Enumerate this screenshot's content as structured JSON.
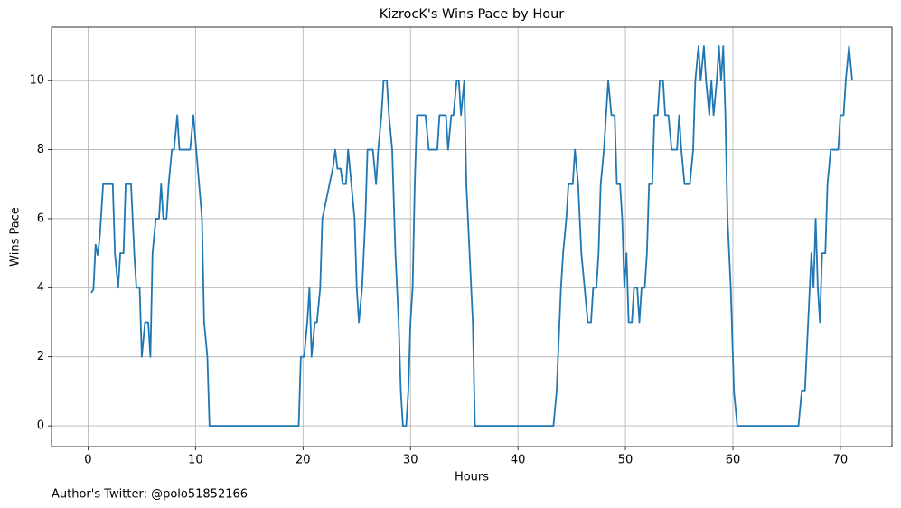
{
  "chart_data": {
    "type": "line",
    "title": "KizrocK's Wins Pace by Hour",
    "xlabel": "Hours",
    "ylabel": "Wins Pace",
    "footnote": "Author's Twitter: @polo51852166",
    "color": "#1f77b4",
    "grid": true,
    "xlim": [
      -3.4,
      74.8
    ],
    "ylim": [
      -0.6,
      11.55
    ],
    "xticks": [
      0,
      10,
      20,
      30,
      40,
      50,
      60,
      70
    ],
    "yticks": [
      0,
      2,
      4,
      6,
      8,
      10
    ],
    "x": [
      0.3,
      0.5,
      0.7,
      0.9,
      1.1,
      1.4,
      2.0,
      2.3,
      2.5,
      2.8,
      3.0,
      3.3,
      3.5,
      4.0,
      4.3,
      4.5,
      4.8,
      5.0,
      5.3,
      5.6,
      5.8,
      6.0,
      6.3,
      6.6,
      6.8,
      7.0,
      7.3,
      7.5,
      7.8,
      8.0,
      8.3,
      8.5,
      9.0,
      9.5,
      9.8,
      10.2,
      10.6,
      10.8,
      11.1,
      11.3,
      19.6,
      19.8,
      20.1,
      20.4,
      20.6,
      20.8,
      21.1,
      21.3,
      21.6,
      21.8,
      22.8,
      23.0,
      23.2,
      23.5,
      23.7,
      24.0,
      24.2,
      24.5,
      24.8,
      25.0,
      25.2,
      25.5,
      25.8,
      26.0,
      26.5,
      26.8,
      27.0,
      27.3,
      27.5,
      27.8,
      28.0,
      28.3,
      28.6,
      28.9,
      29.1,
      29.3,
      29.6,
      29.8,
      30.0,
      30.2,
      30.4,
      30.6,
      31.0,
      31.4,
      31.7,
      32.2,
      32.5,
      32.7,
      33.0,
      33.3,
      33.5,
      33.8,
      34.0,
      34.3,
      34.5,
      34.7,
      35.0,
      35.2,
      35.5,
      35.8,
      36.0,
      43.3,
      43.6,
      44.0,
      44.2,
      44.5,
      44.7,
      45.1,
      45.3,
      45.6,
      45.9,
      46.2,
      46.5,
      46.8,
      47.0,
      47.3,
      47.5,
      47.7,
      48.0,
      48.2,
      48.4,
      48.7,
      49.0,
      49.2,
      49.5,
      49.7,
      49.9,
      50.1,
      50.3,
      50.6,
      50.8,
      51.1,
      51.3,
      51.5,
      51.8,
      52.0,
      52.2,
      52.5,
      52.7,
      53.0,
      53.2,
      53.5,
      53.7,
      54.0,
      54.3,
      54.8,
      55.0,
      55.2,
      55.5,
      56.0,
      56.3,
      56.5,
      56.8,
      57.0,
      57.3,
      57.5,
      57.8,
      58.0,
      58.2,
      58.5,
      58.7,
      58.9,
      59.1,
      59.3,
      59.5,
      59.8,
      60.1,
      60.4,
      66.1,
      66.4,
      66.7,
      67.0,
      67.3,
      67.5,
      67.7,
      67.9,
      68.1,
      68.3,
      68.6,
      68.8,
      69.1,
      69.4,
      69.8,
      70.0,
      70.3,
      70.5,
      70.8,
      71.1
    ],
    "values": [
      3.85,
      3.95,
      5.25,
      4.95,
      5.5,
      7,
      7,
      7,
      5,
      4,
      5,
      5,
      7,
      7,
      5,
      4,
      4,
      2,
      3,
      3,
      2,
      5,
      6,
      6,
      7,
      6,
      6,
      7,
      8,
      8,
      9,
      8,
      8,
      8,
      9,
      7.5,
      6,
      3,
      2,
      0,
      0,
      2,
      2,
      3,
      4,
      2,
      3,
      3,
      4,
      6,
      7.5,
      8,
      7.45,
      7.45,
      7,
      7,
      8,
      7,
      6,
      4,
      3,
      4,
      6,
      8,
      8,
      7,
      8,
      9,
      10,
      10,
      9,
      8,
      5,
      3,
      1,
      0,
      0,
      1,
      3,
      4,
      7,
      9,
      9,
      9,
      8,
      8,
      8,
      9,
      9,
      9,
      8,
      9,
      9,
      10,
      10,
      9,
      10,
      7,
      5,
      3,
      0,
      0,
      1,
      4,
      5,
      6,
      7,
      7,
      8,
      7,
      5,
      4,
      3,
      3,
      4,
      4,
      5,
      7,
      8,
      9,
      10,
      9,
      9,
      7,
      7,
      6,
      4,
      5,
      3,
      3,
      4,
      4,
      3,
      4,
      4,
      5,
      7,
      7,
      9,
      9,
      10,
      10,
      9,
      9,
      8,
      8,
      9,
      8,
      7,
      7,
      8,
      10,
      11,
      10,
      11,
      10,
      9,
      10,
      9,
      10,
      11,
      10,
      11,
      9,
      6,
      4,
      1,
      0,
      0,
      1,
      1,
      3,
      5,
      4,
      6,
      4,
      3,
      5,
      5,
      7,
      8,
      8,
      8,
      9,
      9,
      10,
      11,
      10
    ]
  }
}
